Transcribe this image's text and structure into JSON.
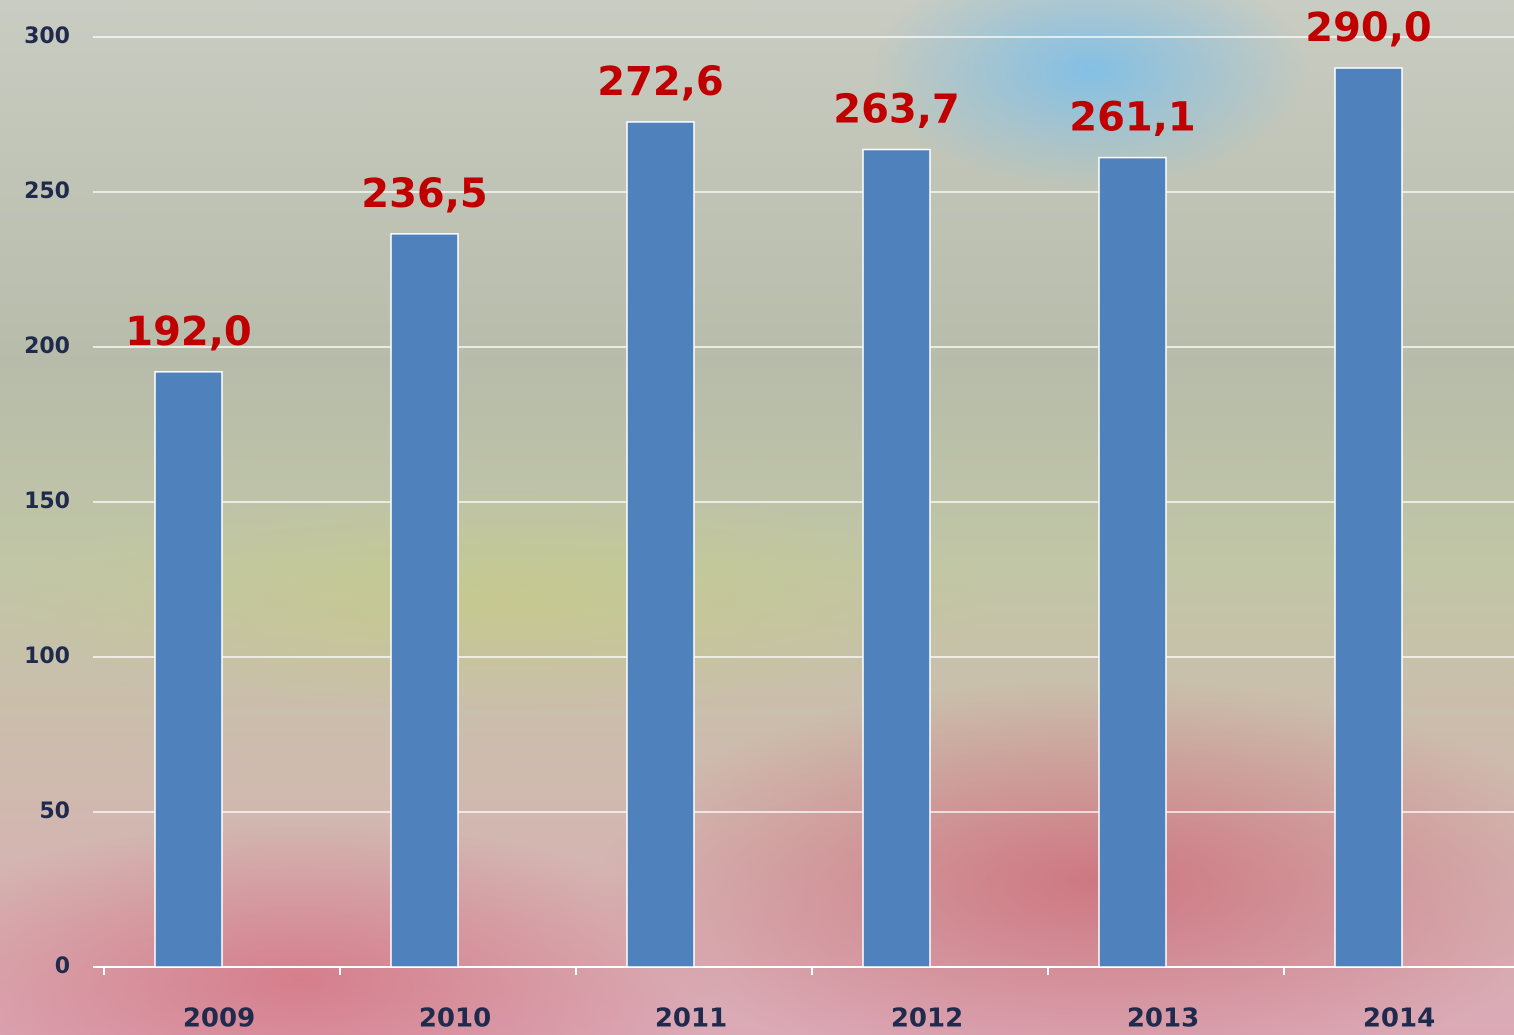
{
  "chart_data": {
    "type": "bar",
    "categories": [
      "2009",
      "2010",
      "2011",
      "2012",
      "2013",
      "2014"
    ],
    "values": [
      192.0,
      236.5,
      272.6,
      263.7,
      261.1,
      290.0
    ],
    "value_labels": [
      "192,0",
      "236,5",
      "272,6",
      "263,7",
      "261,1",
      "290,0"
    ],
    "color": "#4f81bd",
    "ylim": [
      0,
      300
    ],
    "yticks": [
      0,
      50,
      100,
      150,
      200,
      250,
      300
    ],
    "grid": true
  }
}
